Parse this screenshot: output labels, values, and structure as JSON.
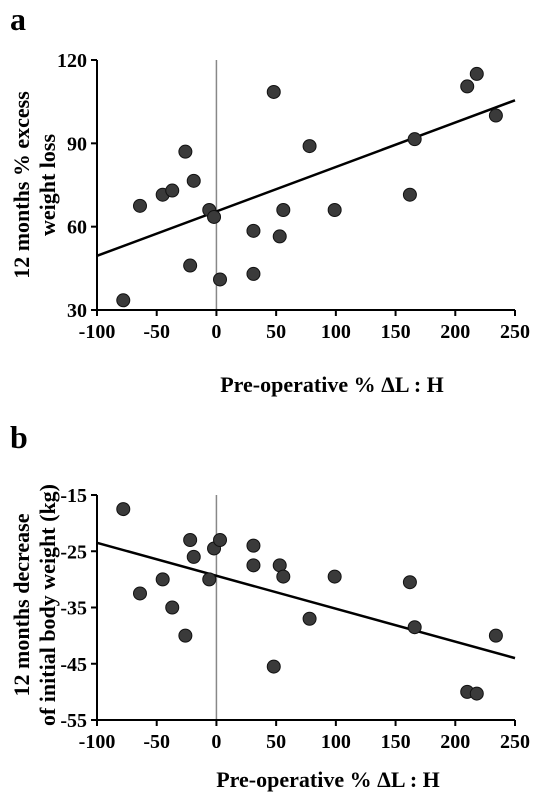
{
  "chart_data": [
    {
      "type": "scatter",
      "panel_label": "a",
      "xlabel": "Pre-operative % ΔL : H",
      "ylabel_lines": [
        "12 months % excess",
        "weight loss"
      ],
      "xlim": [
        -100,
        250
      ],
      "ylim": [
        30,
        120
      ],
      "xticks": [
        -100,
        -50,
        0,
        50,
        100,
        150,
        200,
        250
      ],
      "yticks": [
        30,
        60,
        90,
        120
      ],
      "vertical_reference_x": 0,
      "fit_line": {
        "x": [
          -100,
          250
        ],
        "y": [
          49.5,
          105.5
        ]
      },
      "points": [
        {
          "x": -78,
          "y": 33.5
        },
        {
          "x": -64,
          "y": 67.5
        },
        {
          "x": -45,
          "y": 71.5
        },
        {
          "x": -37,
          "y": 73
        },
        {
          "x": -26,
          "y": 87
        },
        {
          "x": -22,
          "y": 46
        },
        {
          "x": -19,
          "y": 76.5
        },
        {
          "x": -6,
          "y": 66
        },
        {
          "x": -2,
          "y": 63.5
        },
        {
          "x": 3,
          "y": 41
        },
        {
          "x": 31,
          "y": 58.5
        },
        {
          "x": 31,
          "y": 43
        },
        {
          "x": 48,
          "y": 108.5
        },
        {
          "x": 53,
          "y": 56.5
        },
        {
          "x": 56,
          "y": 66
        },
        {
          "x": 78,
          "y": 89
        },
        {
          "x": 99,
          "y": 66
        },
        {
          "x": 162,
          "y": 71.5
        },
        {
          "x": 166,
          "y": 91.5
        },
        {
          "x": 210,
          "y": 110.5
        },
        {
          "x": 218,
          "y": 115
        },
        {
          "x": 234,
          "y": 100
        }
      ]
    },
    {
      "type": "scatter",
      "panel_label": "b",
      "xlabel": "Pre-operative % ΔL : H",
      "ylabel_lines": [
        "12 months decrease",
        "of initial body weight (kg)"
      ],
      "xlim": [
        -100,
        250
      ],
      "ylim": [
        -55,
        -15
      ],
      "xticks": [
        -100,
        -50,
        0,
        50,
        100,
        150,
        200,
        250
      ],
      "yticks": [
        -15,
        -25,
        -35,
        -45,
        -55
      ],
      "vertical_reference_x": 0,
      "fit_line": {
        "x": [
          -100,
          250
        ],
        "y": [
          -23.5,
          -44
        ]
      },
      "points": [
        {
          "x": -78,
          "y": -17.5
        },
        {
          "x": -64,
          "y": -32.5
        },
        {
          "x": -45,
          "y": -30
        },
        {
          "x": -37,
          "y": -35
        },
        {
          "x": -26,
          "y": -40
        },
        {
          "x": -22,
          "y": -23
        },
        {
          "x": -19,
          "y": -26
        },
        {
          "x": -6,
          "y": -30
        },
        {
          "x": -2,
          "y": -24.5
        },
        {
          "x": 3,
          "y": -23
        },
        {
          "x": 31,
          "y": -24
        },
        {
          "x": 31,
          "y": -27.5
        },
        {
          "x": 48,
          "y": -45.5
        },
        {
          "x": 53,
          "y": -27.5
        },
        {
          "x": 56,
          "y": -29.5
        },
        {
          "x": 78,
          "y": -37
        },
        {
          "x": 99,
          "y": -29.5
        },
        {
          "x": 162,
          "y": -30.5
        },
        {
          "x": 166,
          "y": -38.5
        },
        {
          "x": 210,
          "y": -50
        },
        {
          "x": 218,
          "y": -50.3
        },
        {
          "x": 234,
          "y": -40
        }
      ]
    }
  ]
}
